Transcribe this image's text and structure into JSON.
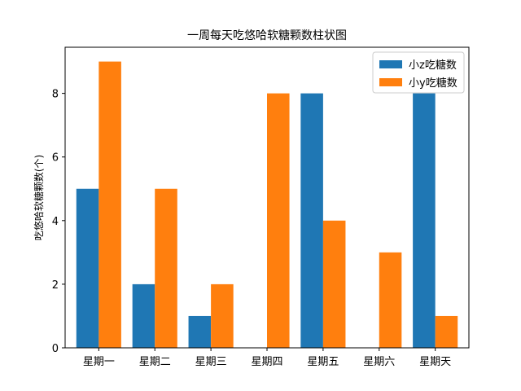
{
  "chart_data": {
    "type": "bar",
    "title": "一周每天吃悠哈软糖颗数柱状图",
    "xlabel": "",
    "ylabel": "吃悠哈软糖颗数(个)",
    "categories": [
      "星期一",
      "星期二",
      "星期三",
      "星期四",
      "星期五",
      "星期六",
      "星期天"
    ],
    "series": [
      {
        "name": "小z吃糖数",
        "color": "#1f77b4",
        "values": [
          5,
          2,
          1,
          0,
          8,
          0,
          8
        ]
      },
      {
        "name": "小y吃糖数",
        "color": "#ff7f0e",
        "values": [
          9,
          5,
          2,
          8,
          4,
          3,
          1
        ]
      }
    ],
    "ylim": [
      0,
      9.45
    ],
    "yticks": [
      0,
      2,
      4,
      6,
      8
    ],
    "grid": false,
    "legend_position": "top-right"
  }
}
